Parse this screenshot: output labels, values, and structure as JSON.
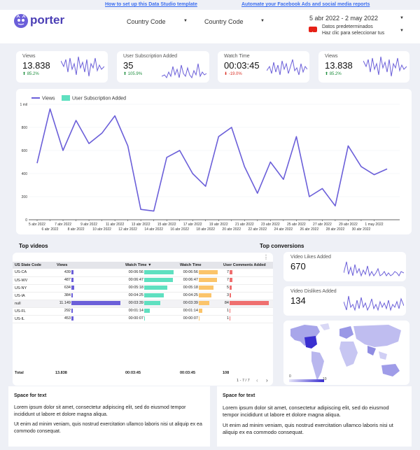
{
  "top_links": {
    "setup": "How to set up this Data Studio template",
    "automate": "Automate your Facebook Ads and social media reports"
  },
  "header": {
    "logo_text": "porter",
    "filter1": "Country Code",
    "filter2": "Country Code",
    "date_range": "5 abr 2022 - 2 may 2022",
    "preset_line1": "Datos predeterminados",
    "preset_line2": "Haz clic para seleccionar tus"
  },
  "kpis": [
    {
      "label": "Views",
      "value": "13.838",
      "delta": "85.2%",
      "dir": "up"
    },
    {
      "label": "User Subscription Added",
      "value": "35",
      "delta": "105.9%",
      "dir": "up"
    },
    {
      "label": "Watch Time",
      "value": "00:03:45",
      "delta": "-19.0%",
      "dir": "down"
    },
    {
      "label": "Views",
      "value": "13.838",
      "delta": "85.2%",
      "dir": "up"
    }
  ],
  "colors": {
    "accent": "#6b5fd9",
    "teal": "#5fe0c0",
    "orange": "#fbc46a",
    "red": "#ef6f6f",
    "up": "#1e8e3e",
    "down": "#d93025"
  },
  "chart_data": {
    "type": "line",
    "series": [
      {
        "name": "Views",
        "values": [
          490,
          960,
          600,
          860,
          660,
          750,
          900,
          640,
          90,
          75,
          540,
          600,
          400,
          290,
          720,
          800,
          460,
          230,
          500,
          350,
          720,
          200,
          270,
          120,
          640,
          460,
          390,
          440
        ]
      },
      {
        "name": "User Subscription Added",
        "values": []
      }
    ],
    "ylim": [
      0,
      1000
    ],
    "y_ticks": [
      "0",
      "200",
      "400",
      "600",
      "800",
      "1 mil"
    ],
    "x_ticks_top": [
      "5 abr 2022",
      "7 abr 2022",
      "9 abr 2022",
      "11 abr 2022",
      "13 abr 2022",
      "15 abr 2022",
      "17 abr 2022",
      "19 abr 2022",
      "21 abr 2022",
      "23 abr 2022",
      "25 abr 2022",
      "27 abr 2022",
      "29 abr 2022",
      "1 may 2022"
    ],
    "x_ticks_bottom": [
      "6 abr 2022",
      "8 abr 2022",
      "10 abr 2022",
      "12 abr 2022",
      "14 abr 2022",
      "16 abr 2022",
      "18 abr 2022",
      "20 abr 2022",
      "22 abr 2022",
      "24 abr 2022",
      "26 abr 2022",
      "28 abr 2022",
      "30 abr 2022"
    ],
    "legend_position": "top-left",
    "grid": true
  },
  "top_videos": {
    "title": "Top videos",
    "columns": [
      "US State Code",
      "Views",
      "Watch Time",
      "Watch Time",
      "User Comments Added"
    ],
    "rows": [
      {
        "state": "US-CA",
        "views": "439",
        "views_frac": 0.04,
        "wt1": "00:06:56",
        "wt1_frac": 0.95,
        "wt2": "00:06:56",
        "wt2_frac": 0.95,
        "comments": "7",
        "comments_frac": 0.08
      },
      {
        "state": "US-WV",
        "views": "487",
        "views_frac": 0.045,
        "wt1": "00:06:47",
        "wt1_frac": 0.93,
        "wt2": "00:06:47",
        "wt2_frac": 0.93,
        "comments": "7",
        "comments_frac": 0.08
      },
      {
        "state": "US-NY",
        "views": "634",
        "views_frac": 0.06,
        "wt1": "00:05:18",
        "wt1_frac": 0.75,
        "wt2": "00:05:18",
        "wt2_frac": 0.75,
        "comments": "5",
        "comments_frac": 0.06
      },
      {
        "state": "US-IA",
        "views": "384",
        "views_frac": 0.035,
        "wt1": "00:04:25",
        "wt1_frac": 0.63,
        "wt2": "00:04:25",
        "wt2_frac": 0.63,
        "comments": "3",
        "comments_frac": 0.035
      },
      {
        "state": "null",
        "views": "11.149",
        "views_frac": 1.0,
        "wt1": "00:03:39",
        "wt1_frac": 0.53,
        "wt2": "00:03:39",
        "wt2_frac": 0.53,
        "comments": "84",
        "comments_frac": 1.0
      },
      {
        "state": "US-FL",
        "views": "292",
        "views_frac": 0.026,
        "wt1": "00:01:14",
        "wt1_frac": 0.18,
        "wt2": "00:01:14",
        "wt2_frac": 0.18,
        "comments": "1",
        "comments_frac": 0.012
      },
      {
        "state": "US-IL",
        "views": "453",
        "views_frac": 0.04,
        "wt1": "00:00:07",
        "wt1_frac": 0.02,
        "wt2": "00:00:07",
        "wt2_frac": 0.02,
        "comments": "1",
        "comments_frac": 0.012
      }
    ],
    "total": {
      "label": "Total",
      "views": "13.838",
      "wt1": "00:03:45",
      "wt2": "00:03:45",
      "comments": "108"
    },
    "pagination": "1 - 7 / 7"
  },
  "top_conversions": {
    "title": "Top conversions",
    "cards": [
      {
        "label": "Video Likes Added",
        "value": "670"
      },
      {
        "label": "Video Dislikes Added",
        "value": "134"
      }
    ]
  },
  "map": {
    "legend_min": "0",
    "legend_max": "10"
  },
  "text_boxes": [
    {
      "title": "Space for text",
      "p1": "Lorem ipsum dolor sit amet, consectetur adipiscing elit, sed do eiusmod tempor incididunt ut labore et dolore magna aliqua.",
      "p2": "Ut enim ad minim veniam, quis nostrud exercitation ullamco laboris nisi ut aliquip ex ea commodo consequat."
    },
    {
      "title": "Space for text",
      "p1": "Lorem ipsum dolor sit amet, consectetur adipiscing elit, sed do eiusmod tempor incididunt ut labore et dolore magna aliqua.",
      "p2": "Ut enim ad minim veniam, quis nostrud exercitation ullamco laboris nisi ut aliquip ex ea commodo consequat."
    }
  ]
}
